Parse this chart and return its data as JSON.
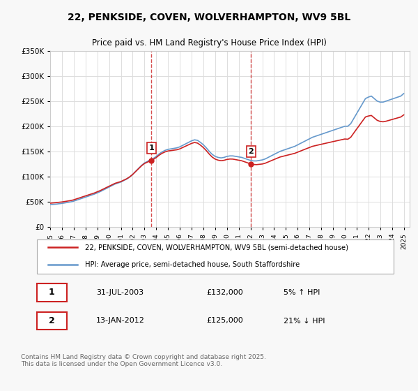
{
  "title": "22, PENKSIDE, COVEN, WOLVERHAMPTON, WV9 5BL",
  "subtitle": "Price paid vs. HM Land Registry's House Price Index (HPI)",
  "ylabel": "",
  "background_color": "#f8f8f8",
  "plot_bg_color": "#ffffff",
  "grid_color": "#dddddd",
  "legend1": "22, PENKSIDE, COVEN, WOLVERHAMPTON, WV9 5BL (semi-detached house)",
  "legend2": "HPI: Average price, semi-detached house, South Staffordshire",
  "footer": "Contains HM Land Registry data © Crown copyright and database right 2025.\nThis data is licensed under the Open Government Licence v3.0.",
  "marker1_label": "1",
  "marker1_date": "31-JUL-2003",
  "marker1_price": "£132,000",
  "marker1_pct": "5% ↑ HPI",
  "marker1_year": 2003.58,
  "marker2_label": "2",
  "marker2_date": "13-JAN-2012",
  "marker2_price": "£125,000",
  "marker2_pct": "21% ↓ HPI",
  "marker2_year": 2012.04,
  "hpi_years": [
    1995,
    1995.25,
    1995.5,
    1995.75,
    1996,
    1996.25,
    1996.5,
    1996.75,
    1997,
    1997.25,
    1997.5,
    1997.75,
    1998,
    1998.25,
    1998.5,
    1998.75,
    1999,
    1999.25,
    1999.5,
    1999.75,
    2000,
    2000.25,
    2000.5,
    2000.75,
    2001,
    2001.25,
    2001.5,
    2001.75,
    2002,
    2002.25,
    2002.5,
    2002.75,
    2003,
    2003.25,
    2003.5,
    2003.75,
    2004,
    2004.25,
    2004.5,
    2004.75,
    2005,
    2005.25,
    2005.5,
    2005.75,
    2006,
    2006.25,
    2006.5,
    2006.75,
    2007,
    2007.25,
    2007.5,
    2007.75,
    2008,
    2008.25,
    2008.5,
    2008.75,
    2009,
    2009.25,
    2009.5,
    2009.75,
    2010,
    2010.25,
    2010.5,
    2010.75,
    2011,
    2011.25,
    2011.5,
    2011.75,
    2012,
    2012.25,
    2012.5,
    2012.75,
    2013,
    2013.25,
    2013.5,
    2013.75,
    2014,
    2014.25,
    2014.5,
    2014.75,
    2015,
    2015.25,
    2015.5,
    2015.75,
    2016,
    2016.25,
    2016.5,
    2016.75,
    2017,
    2017.25,
    2017.5,
    2017.75,
    2018,
    2018.25,
    2018.5,
    2018.75,
    2019,
    2019.25,
    2019.5,
    2019.75,
    2020,
    2020.25,
    2020.5,
    2020.75,
    2021,
    2021.25,
    2021.5,
    2021.75,
    2022,
    2022.25,
    2022.5,
    2022.75,
    2023,
    2023.25,
    2023.5,
    2023.75,
    2024,
    2024.25,
    2024.5,
    2024.75,
    2025
  ],
  "hpi_values": [
    44000,
    44500,
    45000,
    45800,
    46500,
    47500,
    48500,
    49500,
    51000,
    53000,
    55000,
    57000,
    59000,
    61000,
    63000,
    65000,
    67500,
    70000,
    73000,
    76000,
    79000,
    82000,
    85000,
    87000,
    89000,
    92000,
    95000,
    99000,
    104000,
    110000,
    116000,
    122000,
    127000,
    130000,
    133000,
    136000,
    140000,
    145000,
    149000,
    152000,
    154000,
    155000,
    156000,
    157000,
    159000,
    162000,
    165000,
    168000,
    171000,
    173000,
    172000,
    168000,
    163000,
    157000,
    150000,
    144000,
    140000,
    138000,
    137000,
    138000,
    140000,
    141000,
    141000,
    140000,
    139000,
    138000,
    136000,
    134000,
    132000,
    131000,
    131000,
    132000,
    133000,
    135000,
    138000,
    141000,
    144000,
    147000,
    150000,
    152000,
    154000,
    156000,
    158000,
    160000,
    163000,
    166000,
    169000,
    172000,
    175000,
    178000,
    180000,
    182000,
    184000,
    186000,
    188000,
    190000,
    192000,
    194000,
    196000,
    198000,
    200000,
    200000,
    205000,
    215000,
    225000,
    235000,
    245000,
    255000,
    258000,
    260000,
    255000,
    250000,
    248000,
    248000,
    250000,
    252000,
    254000,
    256000,
    258000,
    260000,
    265000
  ],
  "price_dates": [
    1995.5,
    2003.58,
    2012.04,
    2023.5
  ],
  "price_values": [
    48000,
    132000,
    125000,
    210000
  ],
  "red_line_color": "#cc2222",
  "blue_line_color": "#6699cc",
  "vline_color": "#cc2222",
  "ylim_max": 350000,
  "ylim_min": 0,
  "xlim_min": 1995,
  "xlim_max": 2025.5
}
